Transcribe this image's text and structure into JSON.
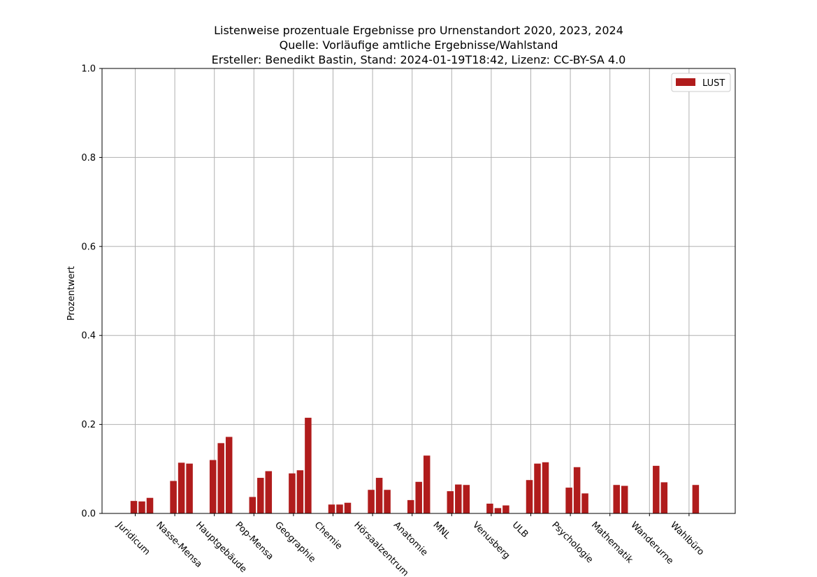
{
  "chart_data": {
    "type": "bar",
    "title_lines": [
      "Listenweise prozentuale Ergebnisse pro Urnenstandort 2020, 2023, 2024",
      "Quelle: Vorläufige amtliche Ergebnisse/Wahlstand",
      "Ersteller: Benedikt Bastin, Stand: 2024-01-19T18:42, Lizenz: CC-BY-SA 4.0"
    ],
    "xlabel": "",
    "ylabel": "Prozentwert",
    "ylim": [
      0,
      1.0
    ],
    "yticks": [
      "0.0",
      "0.2",
      "0.4",
      "0.6",
      "0.8",
      "1.0"
    ],
    "grid": true,
    "legend_position": "top-right",
    "color": "#b01c1c",
    "categories": [
      "Juridicum",
      "Nasse-Mensa",
      "Hauptgebäude",
      "Pop-Mensa",
      "Geographie",
      "Chemie",
      "Hörsaalzentrum",
      "Anatomie",
      "MNL",
      "Venusberg",
      "ULB",
      "Psychologie",
      "Mathematik",
      "Wanderurne",
      "Wahlbüro"
    ],
    "series": [
      {
        "name": "LUST",
        "values": [
          [
            0.028,
            0.027,
            0.035
          ],
          [
            0.073,
            0.114,
            0.112
          ],
          [
            0.12,
            0.158,
            0.172
          ],
          [
            0.037,
            0.08,
            0.095
          ],
          [
            0.09,
            0.097,
            0.215
          ],
          [
            0.02,
            0.02,
            0.024
          ],
          [
            0.053,
            0.08,
            0.053
          ],
          [
            0.03,
            0.071,
            0.13
          ],
          [
            0.05,
            0.065,
            0.064
          ],
          [
            0.022,
            0.012,
            0.018
          ],
          [
            0.075,
            0.112,
            0.115
          ],
          [
            0.058,
            0.104,
            0.045
          ],
          [
            null,
            0.064,
            0.062
          ],
          [
            null,
            0.107,
            0.07
          ],
          [
            null,
            0.064,
            null
          ]
        ]
      }
    ]
  }
}
